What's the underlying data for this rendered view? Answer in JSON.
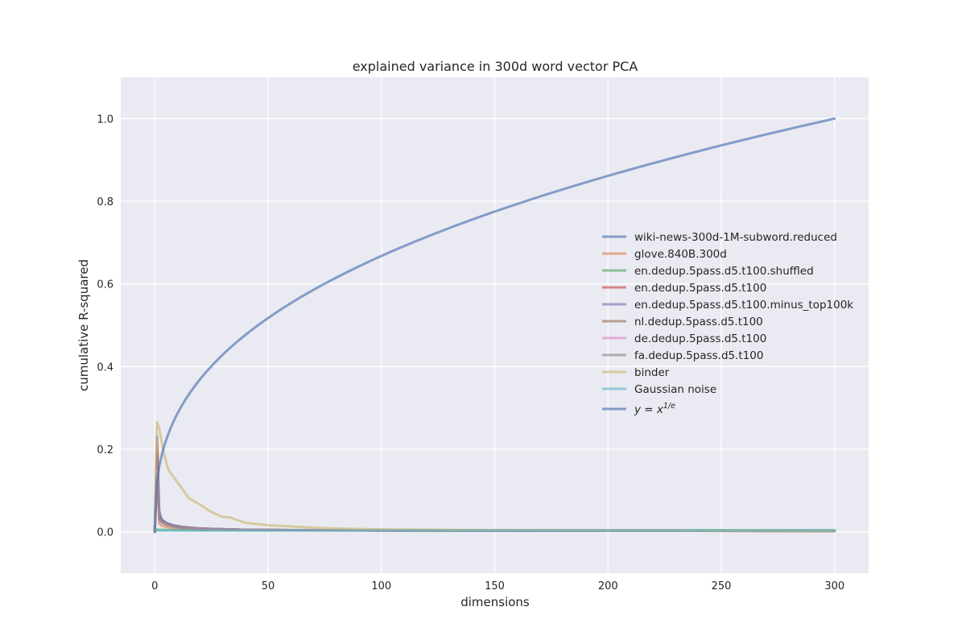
{
  "chart_data": {
    "type": "line",
    "title": "explained variance in 300d word vector PCA",
    "xlabel": "dimensions",
    "ylabel": "cumulative R-squared",
    "xlim": [
      -15,
      315
    ],
    "ylim": [
      -0.1,
      1.1
    ],
    "xticks": [
      0,
      50,
      100,
      150,
      200,
      250,
      300
    ],
    "xtick_labels": [
      "0",
      "50",
      "100",
      "150",
      "200",
      "250",
      "300"
    ],
    "yticks": [
      0.0,
      0.2,
      0.4,
      0.6,
      0.8,
      1.0
    ],
    "ytick_labels": [
      "0.0",
      "0.2",
      "0.4",
      "0.6",
      "0.8",
      "1.0"
    ],
    "grid": true,
    "legend_position": "right",
    "background": "#eaeaf2",
    "series": [
      {
        "name": "wiki-news-300d-1M-subword.reduced",
        "color": "#4c72b0",
        "x": [
          0,
          1,
          2,
          3,
          5,
          8,
          12,
          20,
          40,
          100,
          300
        ],
        "y": [
          0.0,
          0.23,
          0.05,
          0.03,
          0.022,
          0.016,
          0.012,
          0.008,
          0.005,
          0.003,
          0.002
        ]
      },
      {
        "name": "glove.840B.300d",
        "color": "#dd8452",
        "x": [
          0,
          1,
          2,
          3,
          5,
          8,
          12,
          20,
          40,
          100,
          300
        ],
        "y": [
          0.0,
          0.22,
          0.02,
          0.015,
          0.012,
          0.009,
          0.007,
          0.005,
          0.004,
          0.003,
          0.002
        ]
      },
      {
        "name": "en.dedup.5pass.d5.t100.shuffled",
        "color": "#55a868",
        "x": [
          0,
          1,
          2,
          5,
          20,
          100,
          300
        ],
        "y": [
          0.0,
          0.006,
          0.005,
          0.005,
          0.004,
          0.004,
          0.004
        ]
      },
      {
        "name": "en.dedup.5pass.d5.t100",
        "color": "#c44e52",
        "x": [
          0,
          1,
          2,
          3,
          5,
          8,
          12,
          20,
          40,
          100,
          300
        ],
        "y": [
          0.0,
          0.19,
          0.04,
          0.028,
          0.02,
          0.015,
          0.011,
          0.008,
          0.005,
          0.003,
          0.002
        ]
      },
      {
        "name": "en.dedup.5pass.d5.t100.minus_top100k",
        "color": "#8172b3",
        "x": [
          0,
          1,
          2,
          3,
          5,
          8,
          12,
          20,
          40,
          100,
          300
        ],
        "y": [
          0.0,
          0.18,
          0.04,
          0.03,
          0.021,
          0.016,
          0.012,
          0.008,
          0.005,
          0.003,
          0.002
        ]
      },
      {
        "name": "nl.dedup.5pass.d5.t100",
        "color": "#937860",
        "x": [
          0,
          1,
          2,
          3,
          5,
          8,
          12,
          20,
          40,
          100,
          300
        ],
        "y": [
          0.0,
          0.16,
          0.035,
          0.026,
          0.019,
          0.014,
          0.011,
          0.008,
          0.005,
          0.003,
          0.002
        ]
      },
      {
        "name": "de.dedup.5pass.d5.t100",
        "color": "#da8bc3",
        "x": [
          0,
          1,
          2,
          3,
          5,
          8,
          12,
          20,
          40,
          100,
          300
        ],
        "y": [
          0.0,
          0.15,
          0.03,
          0.024,
          0.018,
          0.013,
          0.01,
          0.007,
          0.005,
          0.003,
          0.002
        ]
      },
      {
        "name": "fa.dedup.5pass.d5.t100",
        "color": "#8c8c8c",
        "x": [
          0,
          1,
          2,
          3,
          5,
          8,
          12,
          20,
          40,
          100,
          300
        ],
        "y": [
          0.0,
          0.14,
          0.03,
          0.023,
          0.017,
          0.013,
          0.01,
          0.007,
          0.005,
          0.003,
          0.002
        ]
      },
      {
        "name": "binder",
        "color": "#ccb974",
        "x": [
          0,
          1,
          2,
          3,
          4,
          6,
          8,
          10,
          12,
          15,
          18,
          20,
          25,
          30,
          33,
          35,
          40,
          50,
          60,
          70,
          80,
          100,
          150,
          200,
          250,
          300
        ],
        "y": [
          0.0,
          0.265,
          0.25,
          0.22,
          0.19,
          0.15,
          0.135,
          0.12,
          0.105,
          0.082,
          0.072,
          0.066,
          0.048,
          0.036,
          0.035,
          0.031,
          0.022,
          0.016,
          0.013,
          0.01,
          0.008,
          0.006,
          0.004,
          0.003,
          0.002,
          0.001
        ]
      },
      {
        "name": "Gaussian noise",
        "color": "#64b5cd",
        "x": [
          0,
          1,
          5,
          50,
          100,
          300
        ],
        "y": [
          0.004,
          0.003,
          0.003,
          0.003,
          0.003,
          0.003
        ]
      },
      {
        "name": "$y = x^{1/e}$",
        "color": "#4c72b0",
        "function": "x^(1/e)",
        "domain": [
          1,
          300
        ]
      }
    ],
    "legend_entries": [
      {
        "label": "wiki-news-300d-1M-subword.reduced",
        "color": "#4c72b0"
      },
      {
        "label": "glove.840B.300d",
        "color": "#dd8452"
      },
      {
        "label": "en.dedup.5pass.d5.t100.shuffled",
        "color": "#55a868"
      },
      {
        "label": "en.dedup.5pass.d5.t100",
        "color": "#c44e52"
      },
      {
        "label": "en.dedup.5pass.d5.t100.minus_top100k",
        "color": "#8172b3"
      },
      {
        "label": "nl.dedup.5pass.d5.t100",
        "color": "#937860"
      },
      {
        "label": "de.dedup.5pass.d5.t100",
        "color": "#da8bc3"
      },
      {
        "label": "fa.dedup.5pass.d5.t100",
        "color": "#8c8c8c"
      },
      {
        "label": "binder",
        "color": "#ccb974"
      },
      {
        "label": "Gaussian noise",
        "color": "#64b5cd"
      },
      {
        "label_prefix": "y = x",
        "label_superscript": "1/e",
        "color": "#4c72b0",
        "math": true
      }
    ]
  }
}
